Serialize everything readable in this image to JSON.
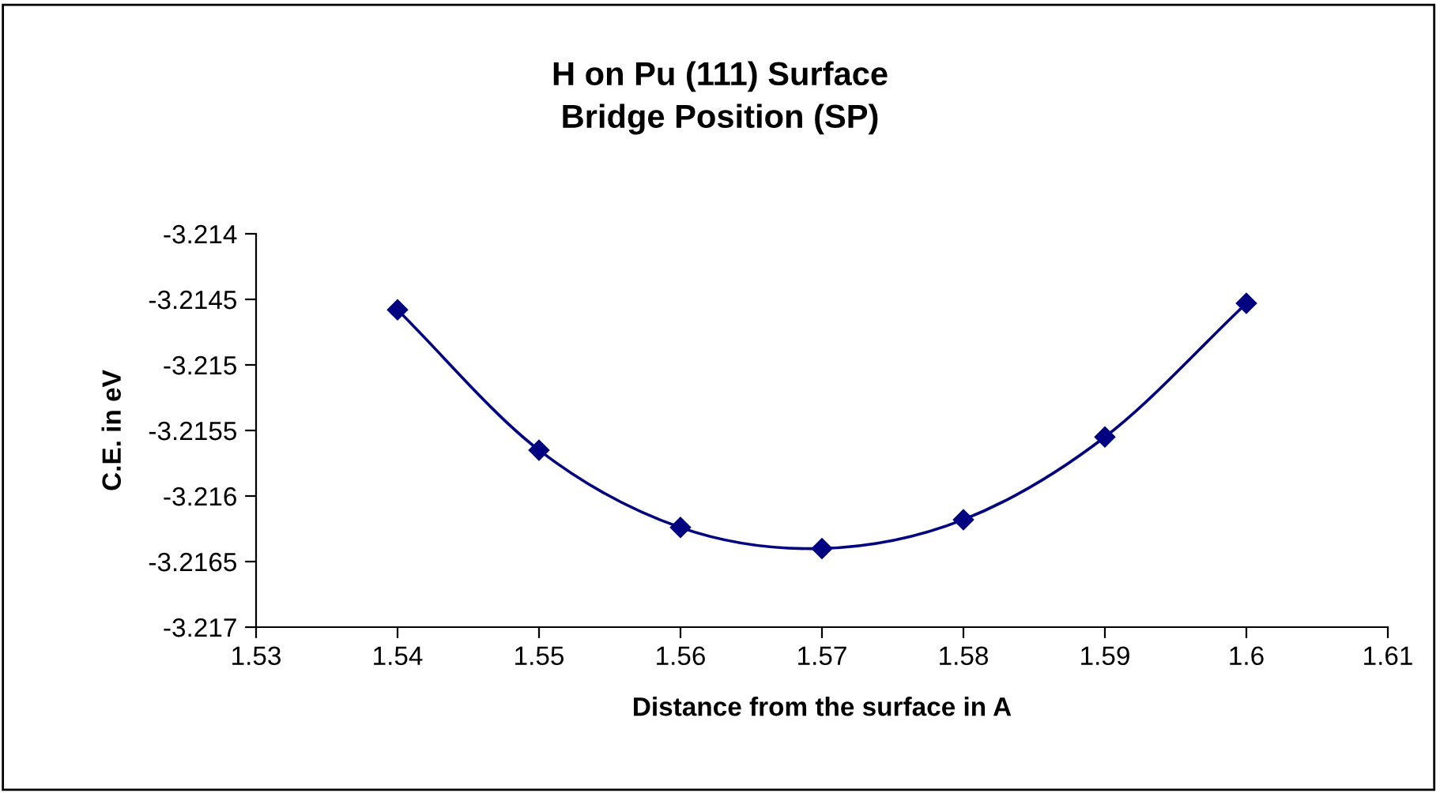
{
  "chart_data": {
    "type": "line",
    "title": "H on Pu (111) Surface\nBridge Position (SP)",
    "xlabel": "Distance from the surface in A",
    "ylabel": "C.E. in eV",
    "x": [
      1.54,
      1.55,
      1.56,
      1.57,
      1.58,
      1.59,
      1.6
    ],
    "series": [
      {
        "color": "#000080",
        "values": [
          -3.21458,
          -3.21565,
          -3.21624,
          -3.2164,
          -3.21618,
          -3.21555,
          -3.21453
        ]
      }
    ],
    "xlim": [
      1.53,
      1.61
    ],
    "xticks": [
      1.53,
      1.54,
      1.55,
      1.56,
      1.57,
      1.58,
      1.59,
      1.6,
      1.61
    ],
    "ylim": [
      -3.217,
      -3.214
    ],
    "yticks": [
      -3.217,
      -3.2165,
      -3.216,
      -3.2155,
      -3.215,
      -3.2145,
      -3.214
    ],
    "marker": "diamond",
    "line_style": "solid",
    "grid": false,
    "legend": false
  }
}
